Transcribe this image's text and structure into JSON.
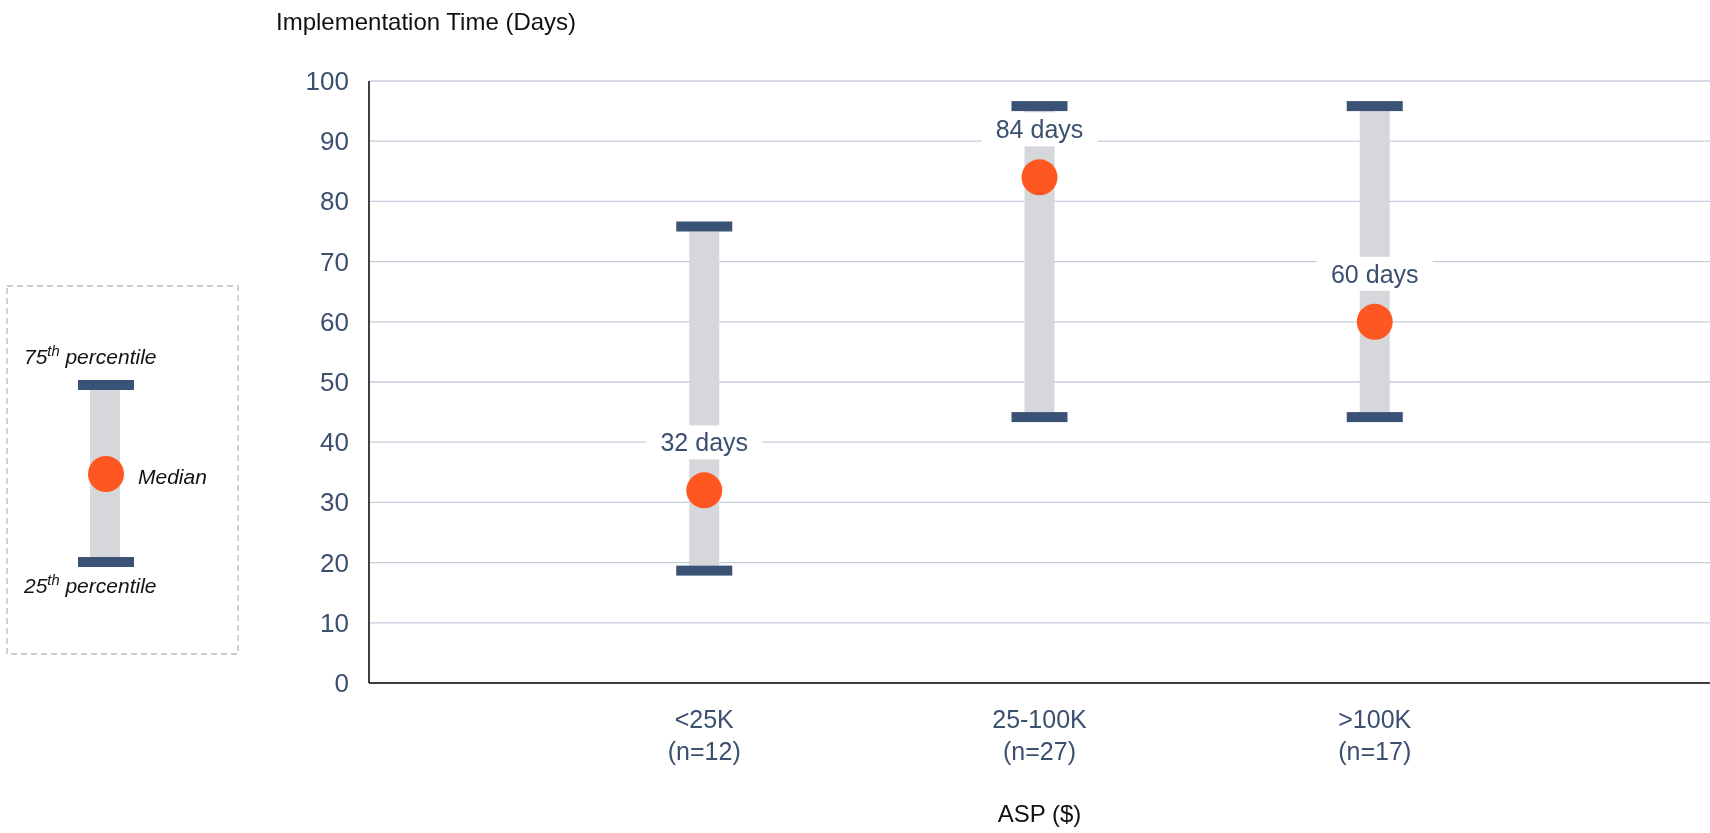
{
  "chart_data": {
    "type": "bar",
    "ylabel": "Implementation Time (Days)",
    "xlabel": "ASP ($)",
    "categories": [
      "<25K\n(n=12)",
      "25-100K\n(n=27)",
      ">100K\n(n=17)"
    ],
    "ylim": [
      0,
      100
    ],
    "yticks": [
      0,
      10,
      20,
      30,
      40,
      50,
      60,
      70,
      80,
      90,
      100
    ],
    "grid": "y",
    "legend": "left",
    "annotations": [
      "75$^{th}$ percentile",
      "25$^{th}$ percentile"
    ],
    "series": [
      {
        "color": "#d5d7da",
        "base": [
          19.5,
          45,
          45
        ],
        "values": [
          55.5,
          50,
          50
        ]
      },
      {
        "type": "scatter",
        "name": "Median",
        "color": "#ff5722",
        "marker": "circle",
        "values": [
          32,
          84,
          60
        ],
        "value_labels": [
          "32 days",
          "84 days",
          "60 days"
        ]
      }
    ]
  }
}
